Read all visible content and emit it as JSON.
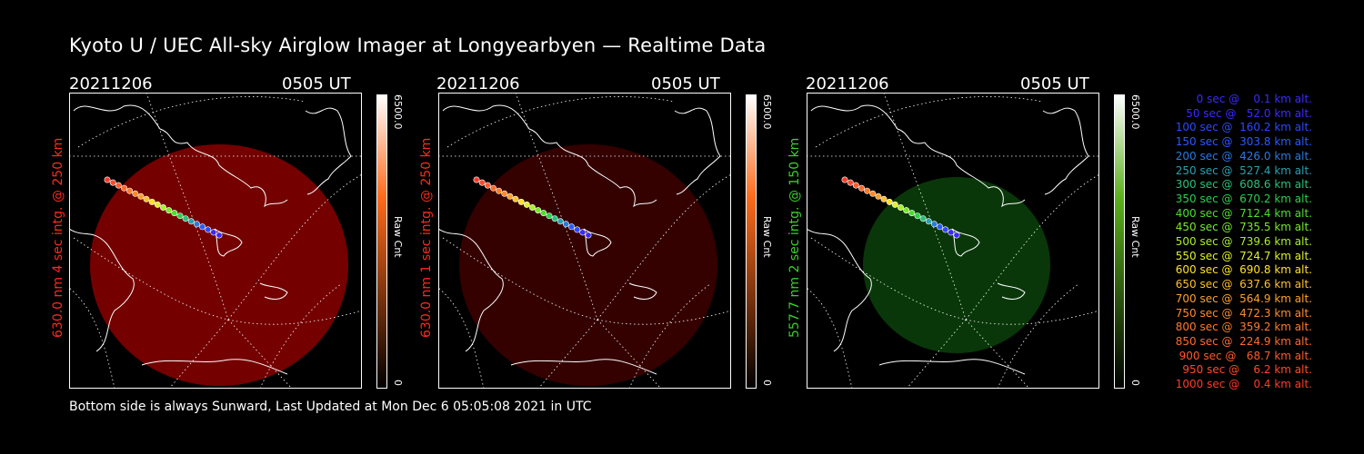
{
  "title": "Kyoto U / UEC All-sky Airglow Imager at Longyearbyen — Realtime Data",
  "panels": [
    {
      "date": "20211206",
      "time": "0505 UT",
      "ylabel": "630.0 nm 4 sec intg. @ 250 km",
      "label_color": "#ff2a1a",
      "glow_color": "#7a0000",
      "glow_opacity": "0.95",
      "cbar_top_color": "#ffffff",
      "cbar_mid_color": "#ff6a1a",
      "cbar_max": "6500.0",
      "cbar_min": "0",
      "cbar_unit": "Raw Cnt"
    },
    {
      "date": "20211206",
      "time": "0505 UT",
      "ylabel": "630.0 nm 1 sec intg. @ 250 km",
      "label_color": "#ff2a1a",
      "glow_color": "#3a0000",
      "glow_opacity": "0.9",
      "cbar_top_color": "#ffffff",
      "cbar_mid_color": "#ff6a1a",
      "cbar_max": "6500.0",
      "cbar_min": "0",
      "cbar_unit": "Raw Cnt"
    },
    {
      "date": "20211206",
      "time": "0505 UT",
      "ylabel": "557.7 nm 2 sec intg. @ 150 km",
      "label_color": "#3ad02a",
      "glow_color": "#0a3a0a",
      "glow_opacity": "0.95",
      "cbar_top_color": "#ffffff",
      "cbar_mid_color": "#5ab01a",
      "cbar_max": "6500.0",
      "cbar_min": "0",
      "cbar_unit": "Raw Cnt"
    }
  ],
  "legend": [
    {
      "text": "   0 sec @    0.1 km alt.",
      "color": "#3a2aff"
    },
    {
      "text": "  50 sec @   52.0 km alt.",
      "color": "#3a2aff"
    },
    {
      "text": " 100 sec @  160.2 km alt.",
      "color": "#2a4aff"
    },
    {
      "text": " 150 sec @  303.8 km alt.",
      "color": "#2a5aff"
    },
    {
      "text": " 200 sec @  426.0 km alt.",
      "color": "#2a7ae0"
    },
    {
      "text": " 250 sec @  527.4 km alt.",
      "color": "#2aa0b0"
    },
    {
      "text": " 300 sec @  608.6 km alt.",
      "color": "#2ac07a"
    },
    {
      "text": " 350 sec @  670.2 km alt.",
      "color": "#2ad04a"
    },
    {
      "text": " 400 sec @  712.4 km alt.",
      "color": "#4ae02a"
    },
    {
      "text": " 450 sec @  735.5 km alt.",
      "color": "#7ae82a"
    },
    {
      "text": " 500 sec @  739.6 km alt.",
      "color": "#a8f02a"
    },
    {
      "text": " 550 sec @  724.7 km alt.",
      "color": "#e0f02a"
    },
    {
      "text": " 600 sec @  690.8 km alt.",
      "color": "#ffe02a"
    },
    {
      "text": " 650 sec @  637.6 km alt.",
      "color": "#ffc02a"
    },
    {
      "text": " 700 sec @  564.9 km alt.",
      "color": "#ffa02a"
    },
    {
      "text": " 750 sec @  472.3 km alt.",
      "color": "#ff8a2a"
    },
    {
      "text": " 800 sec @  359.2 km alt.",
      "color": "#ff7a2a"
    },
    {
      "text": " 850 sec @  224.9 km alt.",
      "color": "#ff6a2a"
    },
    {
      "text": " 900 sec @   68.7 km alt.",
      "color": "#ff5a2a"
    },
    {
      "text": " 950 sec @    6.2 km alt.",
      "color": "#ff4a2a"
    },
    {
      "text": "1000 sec @    0.4 km alt.",
      "color": "#ff3a2a"
    }
  ],
  "footer": "Bottom side is always Sunward, Last Updated at Mon Dec  6 05:05:08 2021 in UTC"
}
